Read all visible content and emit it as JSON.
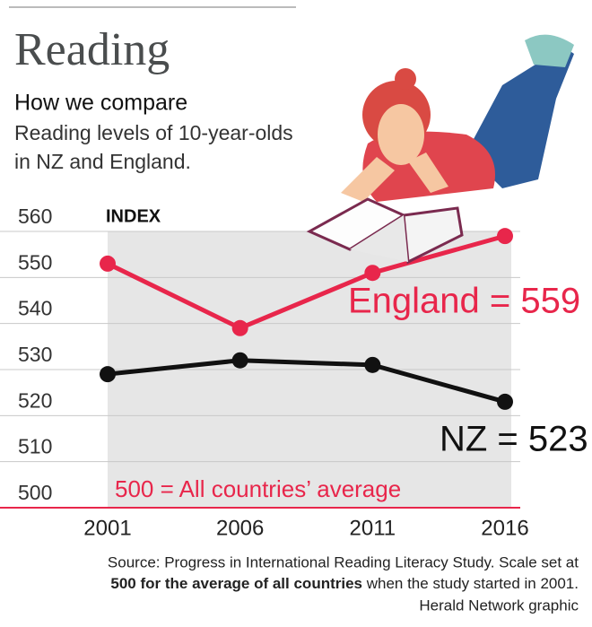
{
  "chart_data": {
    "type": "line",
    "title": "Reading",
    "subtitle": "How we compare",
    "description": [
      "Reading levels of 10-year-olds",
      "in NZ and England."
    ],
    "y_label": "INDEX",
    "categories": [
      "2001",
      "2006",
      "2011",
      "2016"
    ],
    "series": [
      {
        "color": "#e8264b",
        "values": [
          553,
          539,
          551,
          559
        ]
      },
      {
        "color": "#111111",
        "values": [
          529,
          532,
          531,
          523
        ]
      }
    ],
    "ylim": [
      500,
      560
    ],
    "yticks": [
      500,
      510,
      520,
      530,
      540,
      550,
      560
    ],
    "grid": true,
    "annotations": [
      "England = 559",
      "NZ = 523",
      "500 = All countries’ average"
    ],
    "source": {
      "line1": "Source: Progress in International Reading Literacy Study. Scale set at",
      "line2_bold": "500 for the average of all countries",
      "line2_rest": " when the study started in 2001.",
      "line3": "Herald Network graphic"
    }
  }
}
